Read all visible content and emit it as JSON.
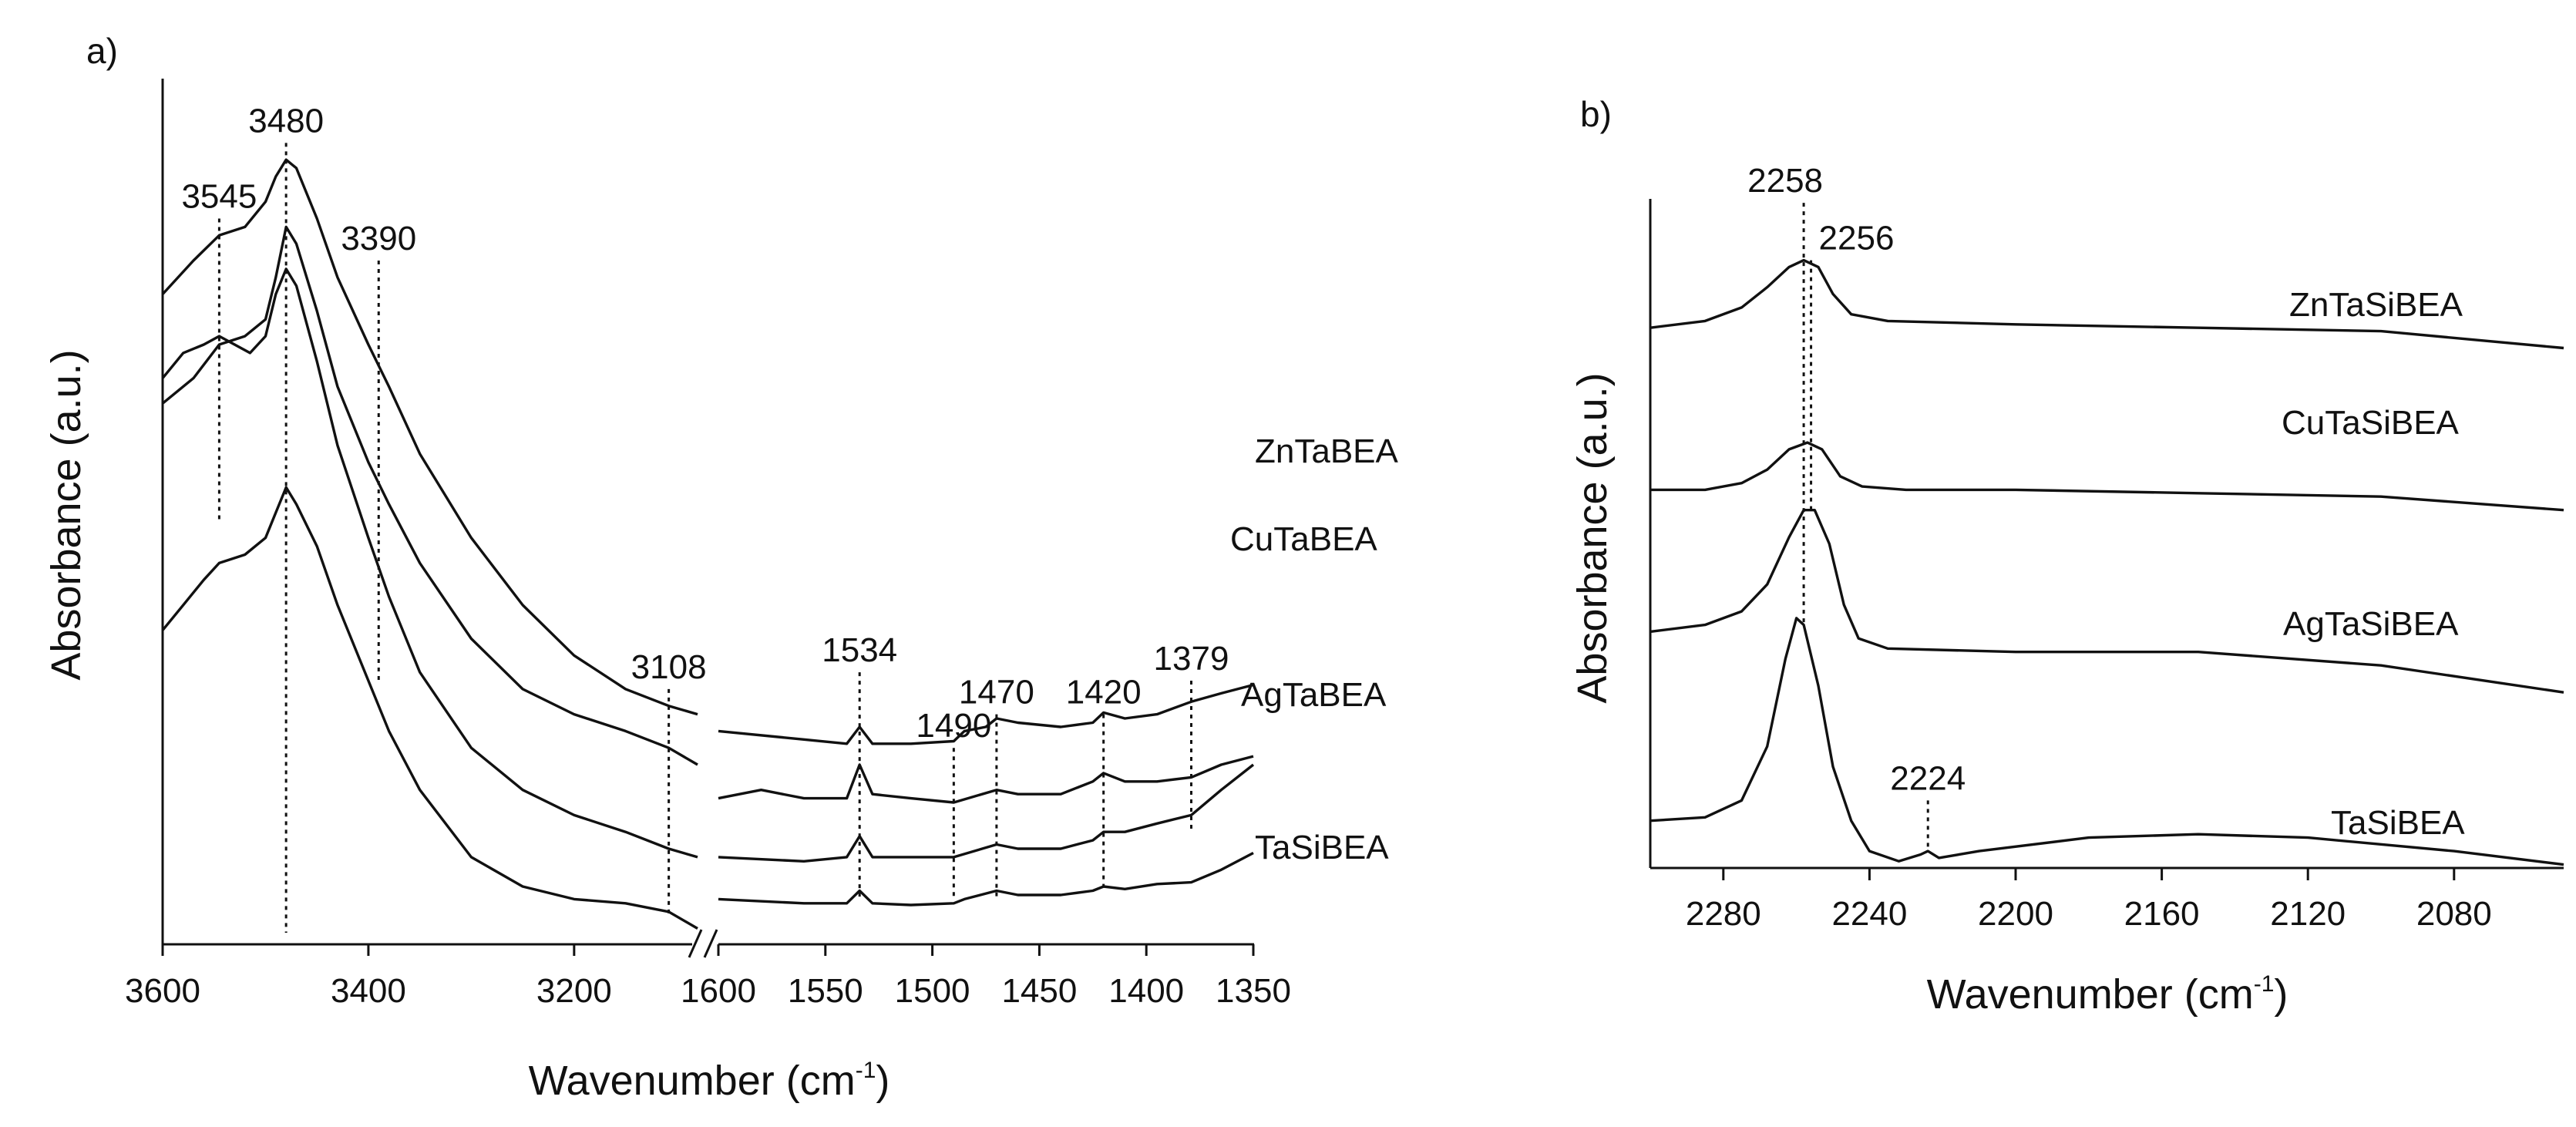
{
  "chart_data": [
    {
      "panel": "a)",
      "type": "line",
      "title": "",
      "xlabel": {
        "prefix": "Wavenumber (cm",
        "superscript": "-1",
        "suffix": ")"
      },
      "ylabel": "Absorbance (a.u.)",
      "x_axis_break": true,
      "segments": [
        {
          "xlim": [
            3600,
            3080
          ],
          "ticks": [
            "3600",
            "3400",
            "3200"
          ],
          "tick_values": [
            3600,
            3400,
            3200
          ]
        },
        {
          "xlim": [
            1600,
            1350
          ],
          "ticks": [
            "1600",
            "1550",
            "1500",
            "1450",
            "1400",
            "1350"
          ],
          "tick_values": [
            1600,
            1550,
            1500,
            1450,
            1400,
            1350
          ]
        }
      ],
      "ylim": [
        0,
        1
      ],
      "series": [
        {
          "name": "ZnTaBEA",
          "high": [
            [
              3600,
              0.76
            ],
            [
              3570,
              0.8
            ],
            [
              3545,
              0.83
            ],
            [
              3520,
              0.84
            ],
            [
              3500,
              0.87
            ],
            [
              3490,
              0.9
            ],
            [
              3480,
              0.92
            ],
            [
              3470,
              0.91
            ],
            [
              3450,
              0.85
            ],
            [
              3430,
              0.78
            ],
            [
              3400,
              0.7
            ],
            [
              3380,
              0.65
            ],
            [
              3350,
              0.57
            ],
            [
              3300,
              0.47
            ],
            [
              3250,
              0.39
            ],
            [
              3200,
              0.33
            ],
            [
              3150,
              0.29
            ],
            [
              3108,
              0.27
            ],
            [
              3080,
              0.26
            ]
          ],
          "low": [
            [
              1600,
              0.24
            ],
            [
              1560,
              0.23
            ],
            [
              1540,
              0.225
            ],
            [
              1534,
              0.245
            ],
            [
              1528,
              0.225
            ],
            [
              1510,
              0.225
            ],
            [
              1490,
              0.228
            ],
            [
              1485,
              0.24
            ],
            [
              1475,
              0.245
            ],
            [
              1470,
              0.255
            ],
            [
              1460,
              0.25
            ],
            [
              1440,
              0.245
            ],
            [
              1425,
              0.25
            ],
            [
              1420,
              0.262
            ],
            [
              1410,
              0.255
            ],
            [
              1395,
              0.26
            ],
            [
              1379,
              0.275
            ],
            [
              1365,
              0.285
            ],
            [
              1350,
              0.295
            ]
          ]
        },
        {
          "name": "CuTaBEA",
          "high": [
            [
              3600,
              0.63
            ],
            [
              3570,
              0.66
            ],
            [
              3545,
              0.7
            ],
            [
              3520,
              0.71
            ],
            [
              3500,
              0.73
            ],
            [
              3490,
              0.78
            ],
            [
              3480,
              0.84
            ],
            [
              3470,
              0.82
            ],
            [
              3450,
              0.74
            ],
            [
              3430,
              0.65
            ],
            [
              3400,
              0.56
            ],
            [
              3380,
              0.51
            ],
            [
              3350,
              0.44
            ],
            [
              3300,
              0.35
            ],
            [
              3250,
              0.29
            ],
            [
              3200,
              0.26
            ],
            [
              3150,
              0.24
            ],
            [
              3108,
              0.22
            ],
            [
              3080,
              0.2
            ]
          ],
          "low": [
            [
              1600,
              0.16
            ],
            [
              1580,
              0.17
            ],
            [
              1560,
              0.16
            ],
            [
              1540,
              0.16
            ],
            [
              1534,
              0.2
            ],
            [
              1528,
              0.165
            ],
            [
              1510,
              0.16
            ],
            [
              1490,
              0.155
            ],
            [
              1470,
              0.17
            ],
            [
              1460,
              0.165
            ],
            [
              1440,
              0.165
            ],
            [
              1425,
              0.18
            ],
            [
              1420,
              0.19
            ],
            [
              1410,
              0.18
            ],
            [
              1395,
              0.18
            ],
            [
              1379,
              0.185
            ],
            [
              1365,
              0.2
            ],
            [
              1350,
              0.21
            ]
          ]
        },
        {
          "name": "AgTaBEA",
          "high": [
            [
              3600,
              0.66
            ],
            [
              3580,
              0.69
            ],
            [
              3560,
              0.7
            ],
            [
              3545,
              0.71
            ],
            [
              3530,
              0.7
            ],
            [
              3515,
              0.69
            ],
            [
              3500,
              0.71
            ],
            [
              3490,
              0.76
            ],
            [
              3480,
              0.79
            ],
            [
              3470,
              0.77
            ],
            [
              3450,
              0.68
            ],
            [
              3430,
              0.58
            ],
            [
              3400,
              0.47
            ],
            [
              3380,
              0.4
            ],
            [
              3350,
              0.31
            ],
            [
              3300,
              0.22
            ],
            [
              3250,
              0.17
            ],
            [
              3200,
              0.14
            ],
            [
              3150,
              0.12
            ],
            [
              3108,
              0.1
            ],
            [
              3080,
              0.09
            ]
          ],
          "low": [
            [
              1600,
              0.09
            ],
            [
              1560,
              0.085
            ],
            [
              1540,
              0.09
            ],
            [
              1534,
              0.115
            ],
            [
              1528,
              0.09
            ],
            [
              1510,
              0.09
            ],
            [
              1490,
              0.09
            ],
            [
              1470,
              0.105
            ],
            [
              1460,
              0.1
            ],
            [
              1440,
              0.1
            ],
            [
              1425,
              0.11
            ],
            [
              1420,
              0.12
            ],
            [
              1410,
              0.12
            ],
            [
              1395,
              0.13
            ],
            [
              1379,
              0.14
            ],
            [
              1365,
              0.17
            ],
            [
              1350,
              0.2
            ]
          ]
        },
        {
          "name": "TaSiBEA",
          "high": [
            [
              3600,
              0.36
            ],
            [
              3580,
              0.39
            ],
            [
              3560,
              0.42
            ],
            [
              3545,
              0.44
            ],
            [
              3520,
              0.45
            ],
            [
              3500,
              0.47
            ],
            [
              3490,
              0.5
            ],
            [
              3480,
              0.53
            ],
            [
              3470,
              0.51
            ],
            [
              3450,
              0.46
            ],
            [
              3430,
              0.39
            ],
            [
              3400,
              0.3
            ],
            [
              3380,
              0.24
            ],
            [
              3350,
              0.17
            ],
            [
              3300,
              0.09
            ],
            [
              3250,
              0.055
            ],
            [
              3200,
              0.04
            ],
            [
              3150,
              0.035
            ],
            [
              3108,
              0.025
            ],
            [
              3080,
              0.005
            ]
          ],
          "low": [
            [
              1600,
              0.04
            ],
            [
              1560,
              0.035
            ],
            [
              1540,
              0.035
            ],
            [
              1534,
              0.05
            ],
            [
              1528,
              0.035
            ],
            [
              1510,
              0.033
            ],
            [
              1490,
              0.035
            ],
            [
              1485,
              0.04
            ],
            [
              1470,
              0.05
            ],
            [
              1460,
              0.045
            ],
            [
              1440,
              0.045
            ],
            [
              1425,
              0.05
            ],
            [
              1420,
              0.055
            ],
            [
              1410,
              0.052
            ],
            [
              1395,
              0.058
            ],
            [
              1379,
              0.06
            ],
            [
              1365,
              0.075
            ],
            [
              1350,
              0.095
            ]
          ]
        }
      ],
      "annotations": [
        {
          "label": "3545",
          "x": 3545,
          "y_top": 0.85,
          "y_bottom": 0.49
        },
        {
          "label": "3480",
          "x": 3480,
          "y_top": 0.94,
          "y_bottom": 0.0
        },
        {
          "label": "3390",
          "x": 3390,
          "y_top": 0.8,
          "y_bottom": 0.3
        },
        {
          "label": "3108",
          "x": 3108,
          "y_top": 0.29,
          "y_bottom": 0.02
        },
        {
          "label": "1534",
          "x": 1534,
          "y_top": 0.31,
          "y_bottom": 0.04
        },
        {
          "label": "1490",
          "x": 1490,
          "y_top": 0.22,
          "y_bottom": 0.04
        },
        {
          "label": "1470",
          "x": 1470,
          "y_top": 0.26,
          "y_bottom": 0.04
        },
        {
          "label": "1420",
          "x": 1420,
          "y_top": 0.26,
          "y_bottom": 0.05
        },
        {
          "label": "1379",
          "x": 1379,
          "y_top": 0.3,
          "y_bottom": 0.12
        }
      ]
    },
    {
      "panel": "b)",
      "type": "line",
      "title": "",
      "xlabel": {
        "prefix": "Wavenumber (cm",
        "superscript": "-1",
        "suffix": ")"
      },
      "ylabel": "Absorbance (a.u.)",
      "xlim": [
        2300,
        2050
      ],
      "ylim": [
        0,
        1
      ],
      "ticks": [
        "2280",
        "2240",
        "2200",
        "2160",
        "2120",
        "2080"
      ],
      "tick_values": [
        2280,
        2240,
        2200,
        2160,
        2120,
        2080
      ],
      "series": [
        {
          "name": "ZnTaSiBEA",
          "points": [
            [
              2300,
              0.8
            ],
            [
              2285,
              0.81
            ],
            [
              2275,
              0.83
            ],
            [
              2268,
              0.86
            ],
            [
              2262,
              0.89
            ],
            [
              2258,
              0.9
            ],
            [
              2254,
              0.89
            ],
            [
              2250,
              0.85
            ],
            [
              2245,
              0.82
            ],
            [
              2235,
              0.81
            ],
            [
              2200,
              0.805
            ],
            [
              2150,
              0.8
            ],
            [
              2100,
              0.795
            ],
            [
              2050,
              0.77
            ]
          ]
        },
        {
          "name": "CuTaSiBEA",
          "points": [
            [
              2300,
              0.56
            ],
            [
              2285,
              0.56
            ],
            [
              2275,
              0.57
            ],
            [
              2268,
              0.59
            ],
            [
              2262,
              0.62
            ],
            [
              2257,
              0.63
            ],
            [
              2253,
              0.62
            ],
            [
              2248,
              0.58
            ],
            [
              2242,
              0.565
            ],
            [
              2230,
              0.56
            ],
            [
              2200,
              0.56
            ],
            [
              2150,
              0.555
            ],
            [
              2100,
              0.55
            ],
            [
              2050,
              0.53
            ]
          ]
        },
        {
          "name": "AgTaSiBEA",
          "points": [
            [
              2300,
              0.35
            ],
            [
              2285,
              0.36
            ],
            [
              2275,
              0.38
            ],
            [
              2268,
              0.42
            ],
            [
              2262,
              0.49
            ],
            [
              2258,
              0.53
            ],
            [
              2255,
              0.53
            ],
            [
              2251,
              0.48
            ],
            [
              2247,
              0.39
            ],
            [
              2243,
              0.34
            ],
            [
              2235,
              0.325
            ],
            [
              2200,
              0.32
            ],
            [
              2150,
              0.32
            ],
            [
              2100,
              0.3
            ],
            [
              2050,
              0.26
            ]
          ]
        },
        {
          "name": "TaSiBEA",
          "points": [
            [
              2300,
              0.07
            ],
            [
              2285,
              0.075
            ],
            [
              2275,
              0.1
            ],
            [
              2268,
              0.18
            ],
            [
              2263,
              0.31
            ],
            [
              2260,
              0.37
            ],
            [
              2258,
              0.36
            ],
            [
              2254,
              0.27
            ],
            [
              2250,
              0.15
            ],
            [
              2245,
              0.07
            ],
            [
              2240,
              0.025
            ],
            [
              2232,
              0.01
            ],
            [
              2226,
              0.02
            ],
            [
              2224,
              0.025
            ],
            [
              2221,
              0.015
            ],
            [
              2210,
              0.025
            ],
            [
              2180,
              0.045
            ],
            [
              2150,
              0.05
            ],
            [
              2120,
              0.045
            ],
            [
              2080,
              0.025
            ],
            [
              2050,
              0.005
            ]
          ]
        }
      ],
      "annotations": [
        {
          "label": "2258",
          "x": 2258,
          "y_top": 0.985,
          "y_bottom": 0.36
        },
        {
          "label": "2256",
          "x": 2256,
          "y_top": 0.9,
          "y_bottom": 0.53
        },
        {
          "label": "2224",
          "x": 2224,
          "y_top": 0.1,
          "y_bottom": 0.025
        }
      ]
    }
  ]
}
